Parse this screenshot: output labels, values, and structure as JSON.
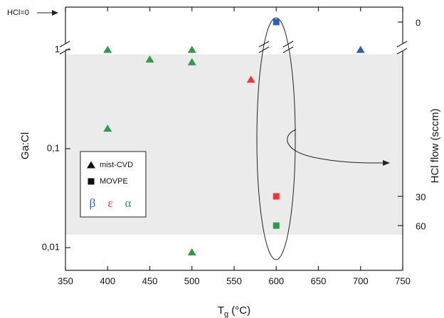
{
  "chart_data": {
    "type": "scatter",
    "xlabel": [
      "T",
      "g",
      " (°C)"
    ],
    "ylabel": "Ga:Cl",
    "y2label": "HCl flow (sccm)",
    "annotation": "HCl=0",
    "log_y": true,
    "xlim": [
      350,
      750
    ],
    "xticks": [
      350,
      400,
      450,
      500,
      550,
      600,
      650,
      700,
      750
    ],
    "ylim": [
      0.0059,
      1.14
    ],
    "yticks": [
      1,
      {
        "value": 0.1,
        "label": "0,1"
      },
      {
        "value": 0.01,
        "label": "0,01"
      }
    ],
    "y2ticks": [
      0,
      30,
      60
    ],
    "shaded_range": [
      0.0135,
      0.9
    ],
    "shade_color": "#ebebeb",
    "series": [
      {
        "marker": "triangle",
        "color": "#2e9a4a",
        "x": [
          400,
          400,
          450,
          500,
          500,
          500
        ],
        "values": [
          1,
          0.16,
          0.8,
          1,
          0.75,
          0.009
        ]
      },
      {
        "marker": "triangle",
        "color": "#e23a3a",
        "x": [
          570
        ],
        "values": [
          0.5
        ]
      },
      {
        "marker": "triangle",
        "color": "#2f5fb0",
        "x": [
          700
        ],
        "values": [
          1
        ]
      },
      {
        "marker": "square",
        "color": "#2f5fb0",
        "x": [
          600
        ],
        "values": [
          null
        ],
        "hcl_flow": [
          0
        ]
      },
      {
        "marker": "square",
        "color": "#e23a3a",
        "x": [
          600
        ],
        "values": [
          0.033
        ],
        "hcl_flow": [
          30
        ]
      },
      {
        "marker": "square",
        "color": "#2e9a4a",
        "x": [
          600
        ],
        "values": [
          0.0167
        ],
        "hcl_flow": [
          60
        ]
      }
    ],
    "legend": {
      "markers": [
        {
          "label": "mist-CVD",
          "marker": "triangle"
        },
        {
          "label": "MOVPE",
          "marker": "square"
        }
      ],
      "phases": [
        {
          "label": "β",
          "color": "#2f5fb0"
        },
        {
          "label": "ε",
          "color": "#e23a3a"
        },
        {
          "label": "α",
          "color": "#2e9a4a"
        }
      ]
    }
  }
}
